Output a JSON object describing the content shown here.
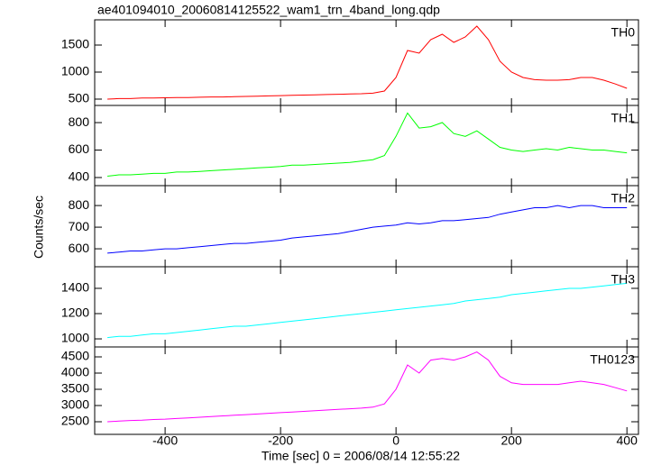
{
  "title": "ae401094010_20060814125522_wam1_trn_4band_long.qdp",
  "xlabel": "Time [sec] 0 = 2006/08/14 12:55:22",
  "ylabel": "Counts/sec",
  "chart_data": [
    {
      "type": "line",
      "xlim": [
        -522,
        420
      ],
      "xticks": [
        -400,
        -200,
        0,
        200,
        400
      ],
      "ylim": [
        383,
        1967
      ],
      "yticks": [
        500,
        1000,
        1500
      ],
      "x": [
        -500,
        -480,
        -460,
        -440,
        -420,
        -400,
        -380,
        -360,
        -340,
        -320,
        -300,
        -280,
        -260,
        -240,
        -220,
        -200,
        -180,
        -160,
        -140,
        -120,
        -100,
        -80,
        -60,
        -40,
        -20,
        0,
        20,
        40,
        60,
        80,
        100,
        120,
        140,
        160,
        180,
        200,
        220,
        240,
        260,
        280,
        300,
        320,
        340,
        360,
        380,
        400
      ],
      "series": [
        {
          "name": "TH0",
          "color": "#ff0000",
          "values": [
            500,
            510,
            510,
            520,
            520,
            525,
            530,
            530,
            535,
            540,
            540,
            545,
            550,
            555,
            560,
            565,
            570,
            575,
            580,
            585,
            590,
            595,
            600,
            610,
            650,
            900,
            1400,
            1350,
            1600,
            1700,
            1550,
            1650,
            1850,
            1600,
            1200,
            1000,
            900,
            860,
            850,
            850,
            860,
            900,
            900,
            850,
            780,
            700
          ]
        }
      ]
    },
    {
      "type": "line",
      "xlim": [
        -522,
        420
      ],
      "xticks": [
        -400,
        -200,
        0,
        200,
        400
      ],
      "ylim": [
        341,
        925
      ],
      "yticks": [
        400,
        600,
        800
      ],
      "x": [
        -500,
        -480,
        -460,
        -440,
        -420,
        -400,
        -380,
        -360,
        -340,
        -320,
        -300,
        -280,
        -260,
        -240,
        -220,
        -200,
        -180,
        -160,
        -140,
        -120,
        -100,
        -80,
        -60,
        -40,
        -20,
        0,
        20,
        40,
        60,
        80,
        100,
        120,
        140,
        160,
        180,
        200,
        220,
        240,
        260,
        280,
        300,
        320,
        340,
        360,
        380,
        400
      ],
      "series": [
        {
          "name": "TH1",
          "color": "#00ff00",
          "values": [
            410,
            420,
            420,
            425,
            430,
            430,
            440,
            440,
            445,
            450,
            455,
            460,
            465,
            470,
            475,
            480,
            490,
            490,
            495,
            500,
            505,
            510,
            520,
            530,
            560,
            700,
            870,
            760,
            770,
            800,
            720,
            700,
            740,
            680,
            620,
            600,
            590,
            600,
            610,
            600,
            620,
            610,
            600,
            600,
            590,
            580
          ]
        }
      ]
    },
    {
      "type": "line",
      "xlim": [
        -522,
        420
      ],
      "xticks": [
        -400,
        -200,
        0,
        200,
        400
      ],
      "ylim": [
        517,
        892
      ],
      "yticks": [
        600,
        700,
        800
      ],
      "x": [
        -500,
        -480,
        -460,
        -440,
        -420,
        -400,
        -380,
        -360,
        -340,
        -320,
        -300,
        -280,
        -260,
        -240,
        -220,
        -200,
        -180,
        -160,
        -140,
        -120,
        -100,
        -80,
        -60,
        -40,
        -20,
        0,
        20,
        40,
        60,
        80,
        100,
        120,
        140,
        160,
        180,
        200,
        220,
        240,
        260,
        280,
        300,
        320,
        340,
        360,
        380,
        400
      ],
      "series": [
        {
          "name": "TH2",
          "color": "#0000ff",
          "values": [
            580,
            585,
            590,
            590,
            595,
            600,
            600,
            605,
            610,
            615,
            620,
            625,
            625,
            630,
            635,
            640,
            650,
            655,
            660,
            665,
            670,
            680,
            690,
            700,
            705,
            710,
            720,
            715,
            720,
            730,
            730,
            735,
            740,
            745,
            760,
            770,
            780,
            790,
            790,
            800,
            790,
            800,
            800,
            790,
            790,
            790
          ]
        }
      ]
    },
    {
      "type": "line",
      "xlim": [
        -522,
        420
      ],
      "xticks": [
        -400,
        -200,
        0,
        200,
        400
      ],
      "ylim": [
        936,
        1571
      ],
      "yticks": [
        1000,
        1200,
        1400
      ],
      "x": [
        -500,
        -480,
        -460,
        -440,
        -420,
        -400,
        -380,
        -360,
        -340,
        -320,
        -300,
        -280,
        -260,
        -240,
        -220,
        -200,
        -180,
        -160,
        -140,
        -120,
        -100,
        -80,
        -60,
        -40,
        -20,
        0,
        20,
        40,
        60,
        80,
        100,
        120,
        140,
        160,
        180,
        200,
        220,
        240,
        260,
        280,
        300,
        320,
        340,
        360,
        380,
        400
      ],
      "series": [
        {
          "name": "TH3",
          "color": "#00ffff",
          "values": [
            1010,
            1020,
            1020,
            1030,
            1040,
            1040,
            1050,
            1060,
            1070,
            1080,
            1090,
            1100,
            1100,
            1110,
            1120,
            1130,
            1140,
            1150,
            1160,
            1170,
            1180,
            1190,
            1200,
            1210,
            1220,
            1230,
            1240,
            1250,
            1260,
            1270,
            1280,
            1300,
            1310,
            1320,
            1330,
            1350,
            1360,
            1370,
            1380,
            1390,
            1400,
            1400,
            1410,
            1420,
            1430,
            1440
          ]
        }
      ]
    },
    {
      "type": "line",
      "xlim": [
        -522,
        420
      ],
      "xticks": [
        -400,
        -200,
        0,
        200,
        400
      ],
      "ylim": [
        2111,
        4806
      ],
      "yticks": [
        2500,
        3000,
        3500,
        4000,
        4500
      ],
      "x": [
        -500,
        -480,
        -460,
        -440,
        -420,
        -400,
        -380,
        -360,
        -340,
        -320,
        -300,
        -280,
        -260,
        -240,
        -220,
        -200,
        -180,
        -160,
        -140,
        -120,
        -100,
        -80,
        -60,
        -40,
        -20,
        0,
        20,
        40,
        60,
        80,
        100,
        120,
        140,
        160,
        180,
        200,
        220,
        240,
        260,
        280,
        300,
        320,
        340,
        360,
        380,
        400
      ],
      "series": [
        {
          "name": "TH0123",
          "color": "#ff00ff",
          "values": [
            2500,
            2520,
            2540,
            2550,
            2570,
            2580,
            2600,
            2620,
            2640,
            2660,
            2680,
            2700,
            2720,
            2740,
            2760,
            2780,
            2800,
            2820,
            2840,
            2860,
            2880,
            2900,
            2920,
            2950,
            3050,
            3500,
            4250,
            4000,
            4400,
            4450,
            4400,
            4500,
            4650,
            4400,
            3900,
            3700,
            3650,
            3650,
            3650,
            3650,
            3700,
            3750,
            3700,
            3650,
            3550,
            3450
          ]
        }
      ]
    }
  ]
}
